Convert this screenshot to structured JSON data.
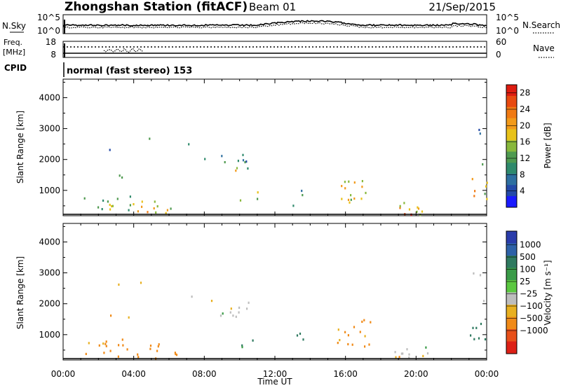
{
  "header": {
    "station": "Zhongshan Station (fitACF)",
    "beam": "Beam 01",
    "date": "21/Sep/2015"
  },
  "nsky_panel": {
    "left_label": "N.Sky",
    "left_ticks": [
      "10^5",
      "10^0"
    ],
    "right_ticks": [
      "10^5",
      "10^0"
    ],
    "right_label": "N.Search"
  },
  "freq_panel": {
    "left_label_line1": "Freq.",
    "left_label_line2": "[MHz]",
    "left_ticks": [
      "18",
      "8"
    ],
    "right_ticks": [
      "60",
      "0"
    ],
    "right_label": "Nave"
  },
  "cpid_panel": {
    "label": "CPID",
    "text": "normal (fast stereo) 153"
  },
  "x_axis": {
    "label": "Time UT",
    "ticks": [
      "00:00",
      "04:00",
      "08:00",
      "12:00",
      "16:00",
      "20:00",
      "00:00"
    ]
  },
  "colors": {
    "power_scale": [
      "#1a1aff",
      "#244aa8",
      "#2e6fa0",
      "#2f8a6c",
      "#4f9a50",
      "#88b83c",
      "#e8c21a",
      "#f29a1a",
      "#f07a14",
      "#e84a10",
      "#dd1c10"
    ],
    "velocity_scale": [
      "#2a3caa",
      "#2e62a8",
      "#2f7a60",
      "#3a9b48",
      "#5bc840",
      "#bdbdbd",
      "#e8b021",
      "#f08a18",
      "#e8501a",
      "#dd2016"
    ]
  },
  "chart_data": [
    {
      "type": "heatmap",
      "name": "power",
      "ylabel": "Slant Range [km]",
      "xlabel": "",
      "xlim": [
        0,
        24
      ],
      "ylim": [
        180,
        4600
      ],
      "y_ticks": [
        "4000",
        "3000",
        "2000",
        "1000"
      ],
      "y_tick_values": [
        4000,
        3000,
        2000,
        1000
      ],
      "colorbar_label": "Power [dB]",
      "colorbar_ticks": [
        "28",
        "24",
        "20",
        "16",
        "12",
        "8",
        "4"
      ],
      "colorbar_range": [
        0,
        30
      ],
      "patches": [
        {
          "x": 0.9,
          "y0": 300,
          "y1": 800,
          "dx": 1.6,
          "dy": 500,
          "value": 10,
          "density": 0.35
        },
        {
          "x": 2.2,
          "y0": 250,
          "y1": 900,
          "dx": 1.8,
          "dy": 600,
          "value": 14,
          "density": 0.5
        },
        {
          "x": 3.8,
          "y0": 250,
          "y1": 800,
          "dx": 1.6,
          "dy": 500,
          "value": 20,
          "density": 0.5
        },
        {
          "x": 5.2,
          "y0": 200,
          "y1": 500,
          "dx": 1.4,
          "dy": 300,
          "value": 16,
          "density": 0.55
        },
        {
          "x": 2.5,
          "y0": 1300,
          "y1": 1700,
          "dx": 1.2,
          "dy": 400,
          "value": 12,
          "density": 0.3
        },
        {
          "x": 8.8,
          "y0": 1600,
          "y1": 2150,
          "dx": 1.7,
          "dy": 450,
          "value": 10,
          "density": 0.6
        },
        {
          "x": 9.5,
          "y0": 1550,
          "y1": 1750,
          "dx": 1.0,
          "dy": 200,
          "value": 18,
          "density": 0.55
        },
        {
          "x": 10.0,
          "y0": 500,
          "y1": 1050,
          "dx": 1.2,
          "dy": 500,
          "value": 12,
          "density": 0.3
        },
        {
          "x": 13.0,
          "y0": 300,
          "y1": 1100,
          "dx": 0.8,
          "dy": 800,
          "value": 10,
          "density": 0.25
        },
        {
          "x": 15.5,
          "y0": 600,
          "y1": 1600,
          "dx": 2.0,
          "dy": 900,
          "value": 16,
          "density": 0.5
        },
        {
          "x": 18.5,
          "y0": 200,
          "y1": 600,
          "dx": 2.2,
          "dy": 400,
          "value": 18,
          "density": 0.6
        },
        {
          "x": 18.8,
          "y0": 180,
          "y1": 300,
          "dx": 1.5,
          "dy": 120,
          "value": 26,
          "density": 0.7
        },
        {
          "x": 22.8,
          "y0": 700,
          "y1": 1400,
          "dx": 1.2,
          "dy": 600,
          "value": 18,
          "density": 0.55
        },
        {
          "x": 23.2,
          "y0": 2600,
          "y1": 3000,
          "dx": 0.5,
          "dy": 400,
          "value": 6,
          "density": 0.45
        },
        {
          "x": 23.5,
          "y0": 1800,
          "y1": 2300,
          "dx": 0.4,
          "dy": 500,
          "value": 8,
          "density": 0.4
        },
        {
          "x": 6.5,
          "y0": 2000,
          "y1": 2600,
          "dx": 2.0,
          "dy": 600,
          "value": 8,
          "density": 0.08
        },
        {
          "x": 2.0,
          "y0": 2200,
          "y1": 3100,
          "dx": 3.0,
          "dy": 900,
          "value": 8,
          "density": 0.05
        }
      ]
    },
    {
      "type": "heatmap",
      "name": "velocity",
      "ylabel": "Slant Range [km]",
      "xlabel": "Time UT",
      "xlim": [
        0,
        24
      ],
      "ylim": [
        180,
        4600
      ],
      "y_ticks": [
        "4000",
        "3000",
        "2000",
        "1000"
      ],
      "y_tick_values": [
        4000,
        3000,
        2000,
        1000
      ],
      "colorbar_label": "Velocity [m s⁻¹]",
      "colorbar_ticks": [
        "1000",
        "500",
        "100",
        "25",
        "−25",
        "−100",
        "−500",
        "−1000"
      ],
      "patches": [
        {
          "x": 0.9,
          "y0": 300,
          "y1": 800,
          "dx": 1.6,
          "dy": 500,
          "value": -120,
          "density": 0.35
        },
        {
          "x": 2.2,
          "y0": 250,
          "y1": 900,
          "dx": 1.8,
          "dy": 600,
          "value": -200,
          "density": 0.5
        },
        {
          "x": 3.8,
          "y0": 250,
          "y1": 800,
          "dx": 1.6,
          "dy": 500,
          "value": -150,
          "density": 0.5
        },
        {
          "x": 5.2,
          "y0": 200,
          "y1": 500,
          "dx": 1.4,
          "dy": 300,
          "value": -300,
          "density": 0.55
        },
        {
          "x": 2.5,
          "y0": 1300,
          "y1": 1700,
          "dx": 1.2,
          "dy": 400,
          "value": -100,
          "density": 0.3
        },
        {
          "x": 8.8,
          "y0": 1600,
          "y1": 2150,
          "dx": 1.7,
          "dy": 450,
          "value": 0,
          "density": 0.6
        },
        {
          "x": 9.5,
          "y0": 1550,
          "y1": 1750,
          "dx": 1.0,
          "dy": 200,
          "value": 10,
          "density": 0.55
        },
        {
          "x": 10.0,
          "y0": 500,
          "y1": 1050,
          "dx": 1.2,
          "dy": 500,
          "value": 150,
          "density": 0.3
        },
        {
          "x": 13.0,
          "y0": 300,
          "y1": 1100,
          "dx": 0.8,
          "dy": 800,
          "value": 300,
          "density": 0.25
        },
        {
          "x": 15.5,
          "y0": 600,
          "y1": 1600,
          "dx": 2.0,
          "dy": 900,
          "value": -150,
          "density": 0.5
        },
        {
          "x": 18.5,
          "y0": 200,
          "y1": 600,
          "dx": 2.2,
          "dy": 400,
          "value": 0,
          "density": 0.6
        },
        {
          "x": 18.8,
          "y0": 180,
          "y1": 300,
          "dx": 1.5,
          "dy": 120,
          "value": -80,
          "density": 0.7
        },
        {
          "x": 22.8,
          "y0": 700,
          "y1": 1400,
          "dx": 1.2,
          "dy": 600,
          "value": 200,
          "density": 0.55
        },
        {
          "x": 23.2,
          "y0": 2600,
          "y1": 3000,
          "dx": 0.5,
          "dy": 400,
          "value": 5,
          "density": 0.45
        },
        {
          "x": 23.5,
          "y0": 1800,
          "y1": 2300,
          "dx": 0.4,
          "dy": 500,
          "value": 5,
          "density": 0.4
        },
        {
          "x": 6.5,
          "y0": 2000,
          "y1": 2600,
          "dx": 2.0,
          "dy": 600,
          "value": 0,
          "density": 0.08
        },
        {
          "x": 2.0,
          "y0": 2200,
          "y1": 3100,
          "dx": 3.0,
          "dy": 900,
          "value": -50,
          "density": 0.05
        }
      ]
    }
  ]
}
